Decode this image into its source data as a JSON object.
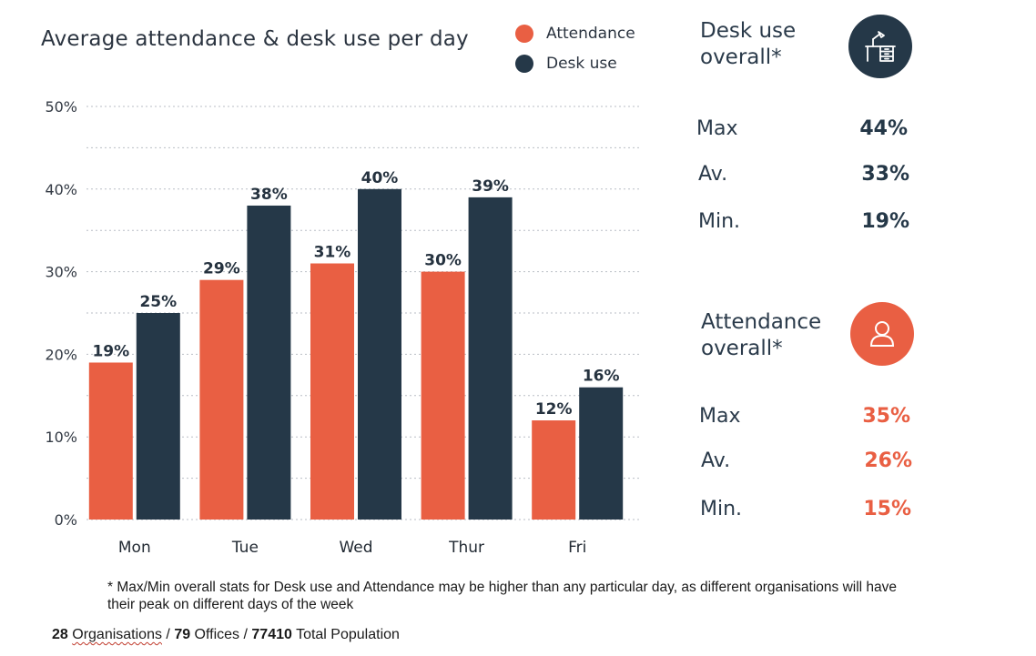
{
  "colors": {
    "attendance": "#e95f43",
    "desk": "#253848",
    "grid": "#b9bec5"
  },
  "chart_data": {
    "type": "bar",
    "title": "Average attendance & desk use per day",
    "categories": [
      "Mon",
      "Tue",
      "Wed",
      "Thur",
      "Fri"
    ],
    "series": [
      {
        "name": "Attendance",
        "values": [
          19,
          29,
          31,
          30,
          12
        ],
        "labels": [
          "19%",
          "29%",
          "31%",
          "30%",
          "12%"
        ]
      },
      {
        "name": "Desk use",
        "values": [
          25,
          38,
          40,
          39,
          16
        ],
        "labels": [
          "25%",
          "38%",
          "40%",
          "39%",
          "16%"
        ]
      }
    ],
    "y_ticks": [
      "0%",
      "10%",
      "20%",
      "30%",
      "40%",
      "50%"
    ],
    "ylim": [
      0,
      50
    ],
    "grid": "dotted horizontal",
    "legend_position": "top-right"
  },
  "desk_panel": {
    "heading_line1": "Desk use",
    "heading_line2": "overall*",
    "icon": "desk-icon",
    "stats": [
      {
        "label": "Max",
        "value": "44%"
      },
      {
        "label": "Av.",
        "value": "33%"
      },
      {
        "label": "Min.",
        "value": "19%"
      }
    ]
  },
  "attendance_panel": {
    "heading_line1": "Attendance",
    "heading_line2": "overall*",
    "icon": "person-icon",
    "stats": [
      {
        "label": "Max",
        "value": "35%"
      },
      {
        "label": "Av.",
        "value": "26%"
      },
      {
        "label": "Min.",
        "value": "15%"
      }
    ]
  },
  "footnote": "* Max/Min overall stats for Desk use and Attendance may be higher than any particular day, as different organisations will have their peak on different days of the week",
  "summary": {
    "organisations_count": "28",
    "organisations_label": "Organisations",
    "sep1": " / ",
    "offices_count": "79",
    "offices_label": " Offices",
    "sep2": " / ",
    "population_count": "77410",
    "population_label": " Total Population"
  }
}
